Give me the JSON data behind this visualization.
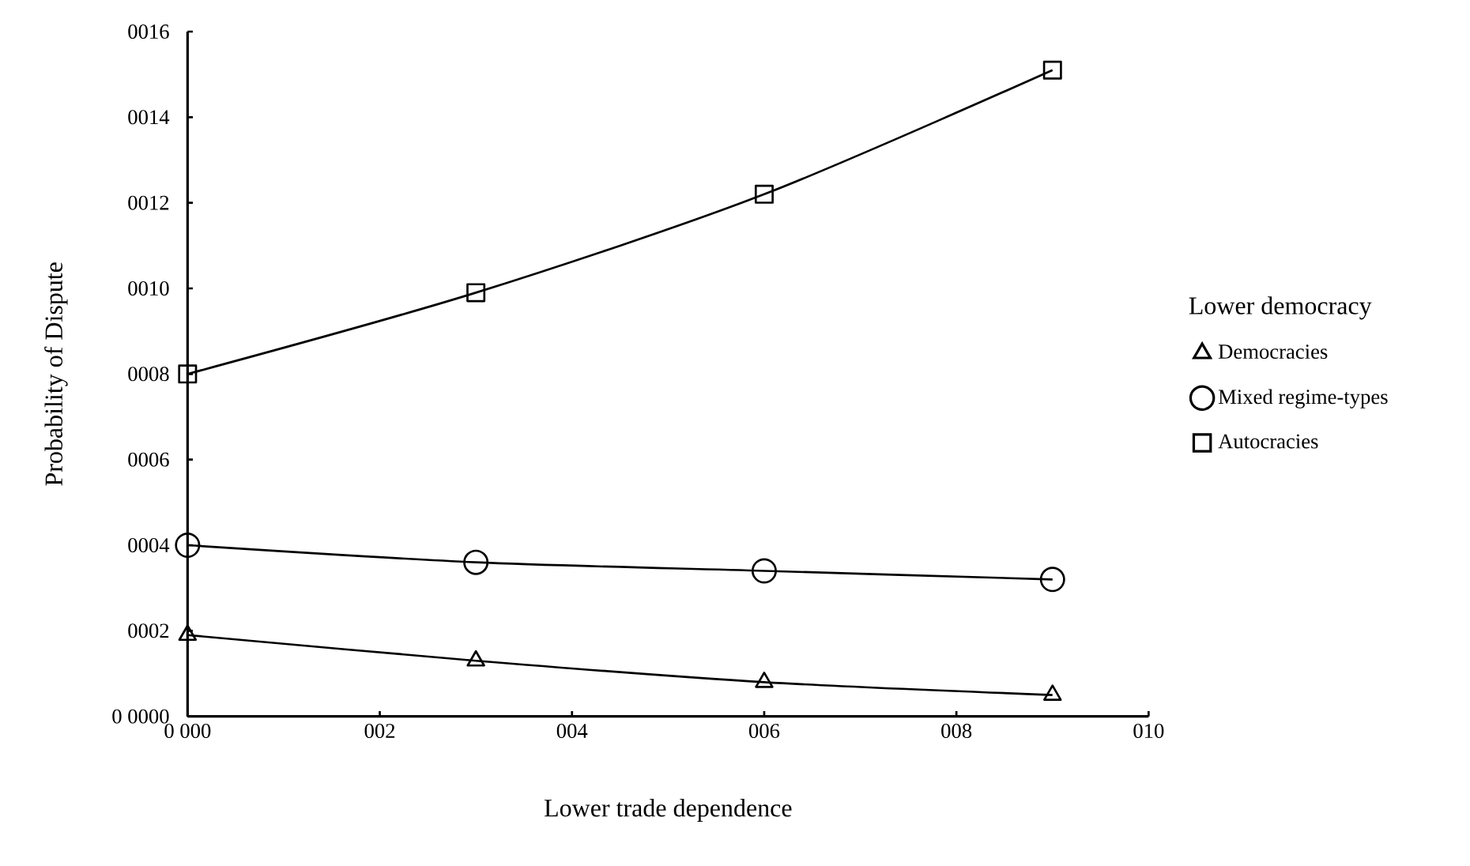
{
  "chart_data": {
    "type": "line",
    "xlabel": "Lower trade dependence",
    "ylabel": "Probability of Dispute",
    "legend_title": "Lower democracy",
    "legend": "right",
    "grid": false,
    "x": [
      0,
      3,
      6,
      9
    ],
    "series": [
      {
        "name": "Democracies",
        "color": "#000000",
        "marker": "triangle",
        "values": [
          1.9,
          1.3,
          0.8,
          0.5
        ]
      },
      {
        "name": "Mixed regime-types",
        "color": "#000000",
        "marker": "circle",
        "values": [
          4,
          3.6,
          3.4,
          3.2
        ]
      },
      {
        "name": "Autocracies",
        "color": "#000000",
        "marker": "square",
        "values": [
          8,
          9.9,
          12.2,
          15.1
        ]
      }
    ],
    "xlim": [
      0,
      10
    ],
    "ylim": [
      0,
      16
    ],
    "xticks": [
      {
        "value": 0,
        "label": "0 000"
      },
      {
        "value": 2,
        "label": "002"
      },
      {
        "value": 4,
        "label": "004"
      },
      {
        "value": 6,
        "label": "006"
      },
      {
        "value": 8,
        "label": "008"
      },
      {
        "value": 10,
        "label": "010"
      }
    ],
    "yticks": [
      {
        "value": 0,
        "label": "0 0000"
      },
      {
        "value": 2,
        "label": "0002"
      },
      {
        "value": 4,
        "label": "0004"
      },
      {
        "value": 6,
        "label": "0006"
      },
      {
        "value": 8,
        "label": "0008"
      },
      {
        "value": 10,
        "label": "0010"
      },
      {
        "value": 12,
        "label": "0012"
      },
      {
        "value": 14,
        "label": "0014"
      },
      {
        "value": 16,
        "label": "0016"
      }
    ]
  }
}
